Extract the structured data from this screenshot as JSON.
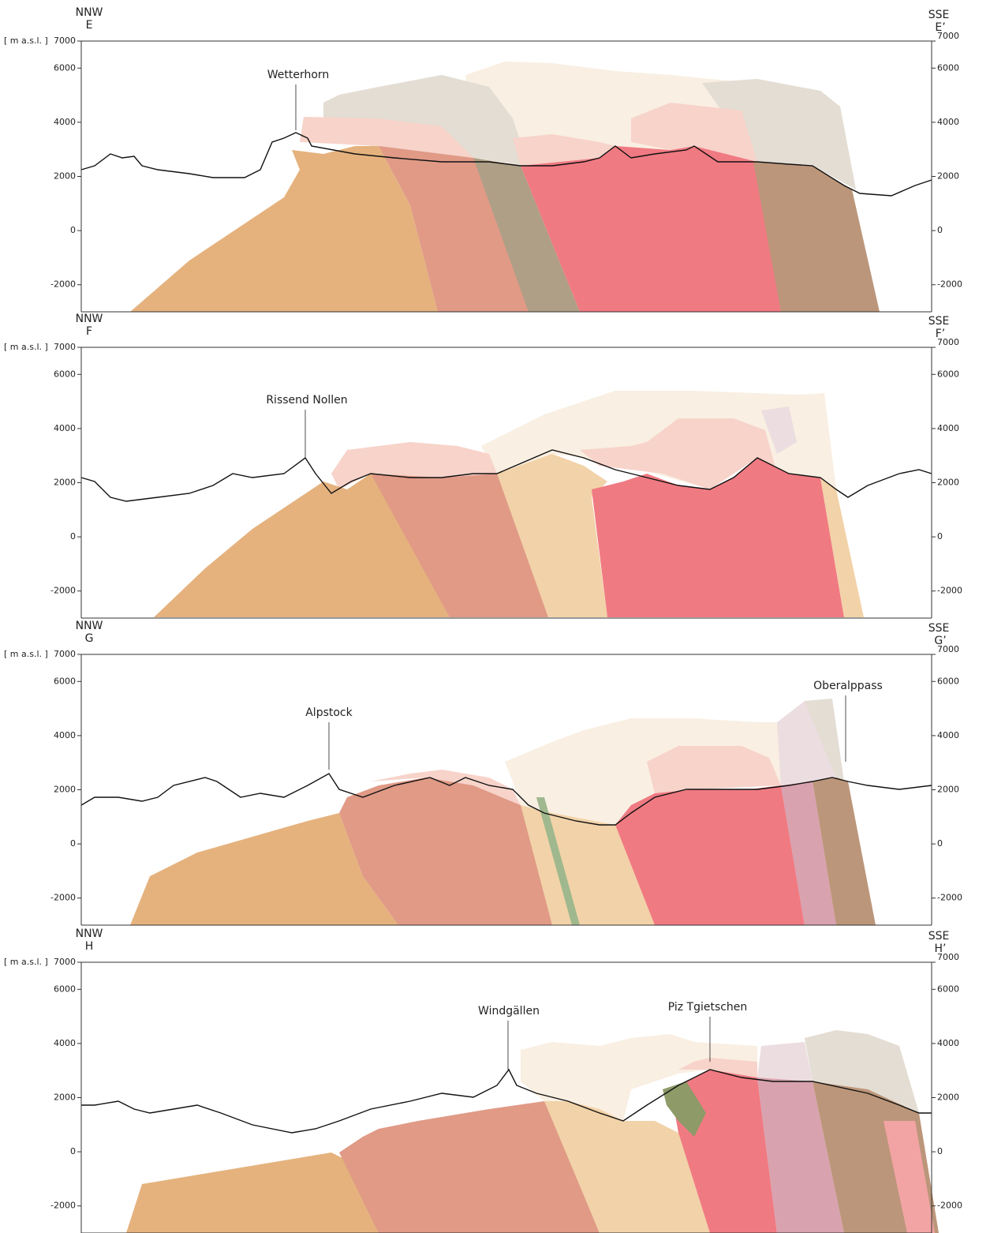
{
  "panels": [
    {
      "left_direction": "NNW",
      "left_label": "E",
      "right_direction": "SSE",
      "right_label": "E’",
      "unit": "[ m a.s.l. ]",
      "ylim": [
        -3000,
        7000
      ],
      "yticks": [
        -2000,
        0,
        2000,
        4000,
        6000,
        7000
      ],
      "peaks": [
        {
          "label": "Wetterhorn"
        }
      ]
    },
    {
      "left_direction": "NNW",
      "left_label": "F",
      "right_direction": "SSE",
      "right_label": "F’",
      "unit": "[ m a.s.l. ]",
      "ylim": [
        -3000,
        7000
      ],
      "yticks": [
        -2000,
        0,
        2000,
        4000,
        6000,
        7000
      ],
      "peaks": [
        {
          "label": "Rissend Nollen"
        }
      ]
    },
    {
      "left_direction": "NNW",
      "left_label": "G",
      "right_direction": "SSE",
      "right_label": "G’",
      "unit": "[ m a.s.l. ]",
      "ylim": [
        -3000,
        7000
      ],
      "yticks": [
        -2000,
        0,
        2000,
        4000,
        6000,
        7000
      ],
      "peaks": [
        {
          "label": "Alpstock"
        },
        {
          "label": "Oberalppass"
        }
      ]
    },
    {
      "left_direction": "NNW",
      "left_label": "H",
      "right_direction": "SSE",
      "right_label": "H’",
      "unit": "[ m a.s.l. ]",
      "ylim": [
        -3000,
        7000
      ],
      "yticks": [
        -2000,
        0,
        2000,
        4000,
        6000,
        7000
      ],
      "peaks": [
        {
          "label": "Windgällen"
        },
        {
          "label": "Piz Tgietschen"
        }
      ]
    }
  ]
}
